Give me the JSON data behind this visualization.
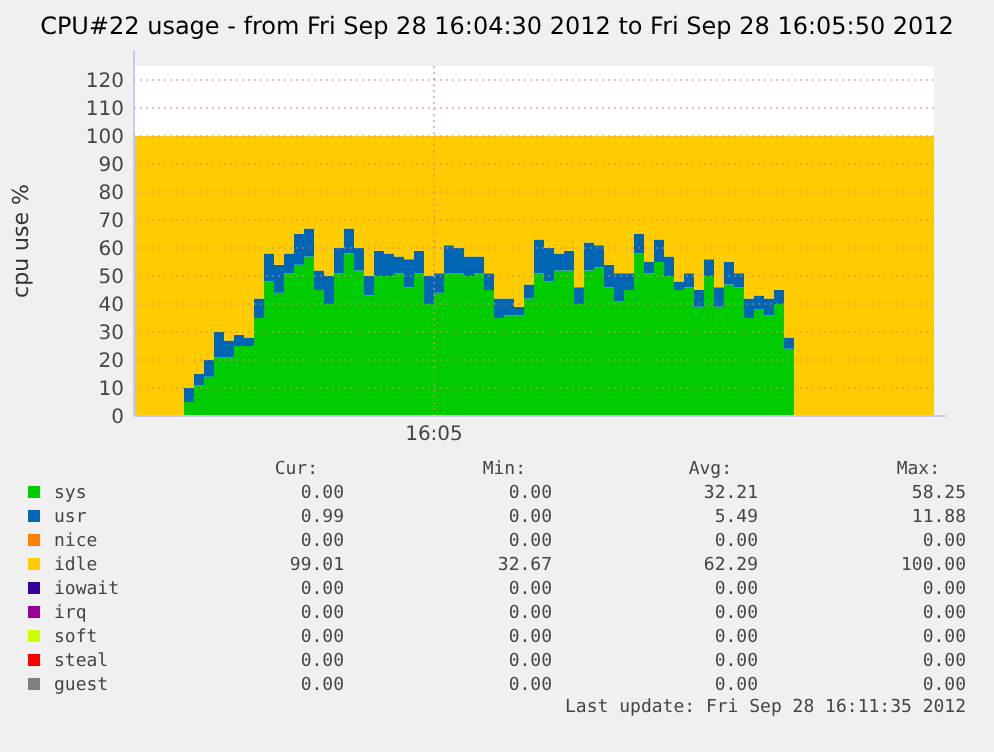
{
  "chart_data": {
    "type": "area",
    "stacked": true,
    "title": "CPU#22 usage - from Fri Sep 28 16:04:30 2012 to Fri Sep 28 16:05:50 2012",
    "ylabel": "cpu use %",
    "grid": true,
    "legend": "bottom",
    "categories": [
      null,
      null,
      null,
      null,
      null,
      null,
      null,
      null,
      null,
      null,
      null,
      null,
      null,
      null,
      null,
      null,
      null,
      null,
      null,
      null,
      null,
      null,
      null,
      null,
      null,
      null,
      null,
      null,
      null,
      null,
      "16:05",
      null,
      null,
      null,
      null,
      null,
      null,
      null,
      null,
      null,
      null,
      null,
      null,
      null,
      null,
      null,
      null,
      null,
      null,
      null,
      null,
      null,
      null,
      null,
      null,
      null,
      null,
      null,
      null,
      null,
      null,
      null,
      null,
      null,
      null,
      null,
      null,
      null,
      null,
      null,
      null,
      null,
      null,
      null,
      null,
      null,
      null,
      null,
      null,
      null
    ],
    "ylim": [
      0,
      125
    ],
    "yticks": [
      0,
      10,
      20,
      30,
      40,
      50,
      60,
      70,
      80,
      90,
      100,
      110,
      120
    ],
    "series": [
      {
        "name": "sys",
        "color": "#00cc00",
        "values": [
          0,
          0,
          0,
          0,
          0,
          5,
          11,
          14,
          21,
          21,
          25,
          25,
          35,
          48,
          44,
          51,
          54,
          57,
          45,
          40,
          51,
          58,
          52,
          43,
          50,
          50,
          51,
          46,
          51,
          40,
          44,
          51,
          51,
          50,
          51,
          45,
          35,
          36,
          36,
          42,
          51,
          48,
          52,
          52,
          40,
          52,
          53,
          46,
          41,
          45,
          58,
          51,
          55,
          50,
          45,
          46,
          39,
          50,
          39,
          47,
          46,
          35,
          38,
          36,
          40,
          24,
          0,
          0,
          0,
          0,
          0,
          0,
          0,
          0,
          0,
          0,
          0,
          0,
          0,
          0
        ]
      },
      {
        "name": "usr",
        "color": "#0066b3",
        "values": [
          0,
          0,
          0,
          0,
          0,
          5,
          4,
          6,
          9,
          6,
          4,
          3,
          7,
          10,
          10,
          7,
          11,
          10,
          7,
          10,
          9,
          9,
          8,
          7,
          9,
          8,
          6,
          10,
          8,
          10,
          7,
          10,
          9,
          7,
          6,
          6,
          7,
          6,
          3,
          5,
          12,
          12,
          6,
          7,
          6,
          10,
          8,
          8,
          10,
          6,
          7,
          4,
          8,
          7,
          3,
          5,
          6,
          6,
          7,
          8,
          5,
          7,
          5,
          6,
          5,
          4,
          0,
          0,
          0,
          0,
          0,
          0,
          0,
          0,
          0,
          0,
          0,
          0,
          0,
          0
        ]
      },
      {
        "name": "nice",
        "color": "#ff8000",
        "values": [
          null,
          null,
          null,
          null,
          null,
          null,
          null,
          null,
          null,
          null,
          null,
          null,
          null,
          null,
          null,
          null,
          null,
          null,
          null,
          null,
          null,
          null,
          null,
          null,
          null,
          null,
          null,
          null,
          null,
          null,
          null,
          null,
          null,
          null,
          null,
          null,
          null,
          null,
          null,
          null,
          null,
          null,
          null,
          null,
          null,
          null,
          null,
          null,
          null,
          null,
          null,
          null,
          null,
          null,
          null,
          null,
          null,
          null,
          null,
          null,
          null,
          null,
          null,
          null,
          null,
          null,
          null,
          null,
          null,
          null,
          null,
          null,
          null,
          null,
          null,
          null,
          null,
          null,
          null,
          null
        ]
      },
      {
        "name": "idle",
        "color": "#ffcc00",
        "values": [
          100,
          100,
          100,
          100,
          100,
          90,
          85,
          80,
          70,
          73,
          71,
          72,
          58,
          42,
          46,
          42,
          35,
          33,
          48,
          50,
          40,
          33,
          40,
          50,
          41,
          42,
          43,
          44,
          41,
          50,
          49,
          39,
          40,
          43,
          43,
          49,
          58,
          58,
          61,
          53,
          37,
          40,
          42,
          41,
          54,
          38,
          39,
          46,
          49,
          49,
          35,
          45,
          37,
          43,
          52,
          49,
          55,
          44,
          54,
          45,
          49,
          58,
          57,
          58,
          55,
          72,
          100,
          100,
          100,
          100,
          100,
          100,
          100,
          100,
          100,
          100,
          100,
          100,
          100,
          100
        ]
      },
      {
        "name": "iowait",
        "color": "#330099",
        "values": [
          null,
          null,
          null,
          null,
          null,
          null,
          null,
          null,
          null,
          null,
          null,
          null,
          null,
          null,
          null,
          null,
          null,
          null,
          null,
          null,
          null,
          null,
          null,
          null,
          null,
          null,
          null,
          null,
          null,
          null,
          null,
          null,
          null,
          null,
          null,
          null,
          null,
          null,
          null,
          null,
          null,
          null,
          null,
          null,
          null,
          null,
          null,
          null,
          null,
          null,
          null,
          null,
          null,
          null,
          null,
          null,
          null,
          null,
          null,
          null,
          null,
          null,
          null,
          null,
          null,
          null,
          null,
          null,
          null,
          null,
          null,
          null,
          null,
          null,
          null,
          null,
          null,
          null,
          null,
          null
        ]
      },
      {
        "name": "irq",
        "color": "#990099",
        "values": [
          null,
          null,
          null,
          null,
          null,
          null,
          null,
          null,
          null,
          null,
          null,
          null,
          null,
          null,
          null,
          null,
          null,
          null,
          null,
          null,
          null,
          null,
          null,
          null,
          null,
          null,
          null,
          null,
          null,
          null,
          null,
          null,
          null,
          null,
          null,
          null,
          null,
          null,
          null,
          null,
          null,
          null,
          null,
          null,
          null,
          null,
          null,
          null,
          null,
          null,
          null,
          null,
          null,
          null,
          null,
          null,
          null,
          null,
          null,
          null,
          null,
          null,
          null,
          null,
          null,
          null,
          null,
          null,
          null,
          null,
          null,
          null,
          null,
          null,
          null,
          null,
          null,
          null,
          null,
          null
        ]
      },
      {
        "name": "soft",
        "color": "#ccff00",
        "values": [
          null,
          null,
          null,
          null,
          null,
          null,
          null,
          null,
          null,
          null,
          null,
          null,
          null,
          null,
          null,
          null,
          null,
          null,
          null,
          null,
          null,
          null,
          null,
          null,
          null,
          null,
          null,
          null,
          null,
          null,
          null,
          null,
          null,
          null,
          null,
          null,
          null,
          null,
          null,
          null,
          null,
          null,
          null,
          null,
          null,
          null,
          null,
          null,
          null,
          null,
          null,
          null,
          null,
          null,
          null,
          null,
          null,
          null,
          null,
          null,
          null,
          null,
          null,
          null,
          null,
          null,
          null,
          null,
          null,
          null,
          null,
          null,
          null,
          null,
          null,
          null,
          null,
          null,
          null,
          null
        ]
      },
      {
        "name": "steal",
        "color": "#ff0000",
        "values": [
          null,
          null,
          null,
          null,
          null,
          null,
          null,
          null,
          null,
          null,
          null,
          null,
          null,
          null,
          null,
          null,
          null,
          null,
          null,
          null,
          null,
          null,
          null,
          null,
          null,
          null,
          null,
          null,
          null,
          null,
          null,
          null,
          null,
          null,
          null,
          null,
          null,
          null,
          null,
          null,
          null,
          null,
          null,
          null,
          null,
          null,
          null,
          null,
          null,
          null,
          null,
          null,
          null,
          null,
          null,
          null,
          null,
          null,
          null,
          null,
          null,
          null,
          null,
          null,
          null,
          null,
          null,
          null,
          null,
          null,
          null,
          null,
          null,
          null,
          null,
          null,
          null,
          null,
          null,
          null
        ]
      },
      {
        "name": "guest",
        "color": "#808080",
        "values": [
          null,
          null,
          null,
          null,
          null,
          null,
          null,
          null,
          null,
          null,
          null,
          null,
          null,
          null,
          null,
          null,
          null,
          null,
          null,
          null,
          null,
          null,
          null,
          null,
          null,
          null,
          null,
          null,
          null,
          null,
          null,
          null,
          null,
          null,
          null,
          null,
          null,
          null,
          null,
          null,
          null,
          null,
          null,
          null,
          null,
          null,
          null,
          null,
          null,
          null,
          null,
          null,
          null,
          null,
          null,
          null,
          null,
          null,
          null,
          null,
          null,
          null,
          null,
          null,
          null,
          null,
          null,
          null,
          null,
          null,
          null,
          null,
          null,
          null,
          null,
          null,
          null,
          null,
          null,
          null
        ]
      }
    ],
    "annotations": [
      "Cur:",
      "Min:",
      "Avg:",
      "Max:",
      "0.00",
      "0.00",
      "32.21",
      "58.25",
      "0.99",
      "0.00",
      "5.49",
      "11.88",
      "0.00",
      "0.00",
      "0.00",
      "0.00",
      "99.01",
      "32.67",
      "62.29",
      "100.00",
      "0.00",
      "0.00",
      "0.00",
      "0.00",
      "0.00",
      "0.00",
      "0.00",
      "0.00",
      "0.00",
      "0.00",
      "0.00",
      "0.00",
      "0.00",
      "0.00",
      "0.00",
      "0.00",
      "0.00",
      "0.00",
      "0.00",
      "0.00",
      "Last update: Fri Sep 28 16:11:35 2012"
    ]
  }
}
